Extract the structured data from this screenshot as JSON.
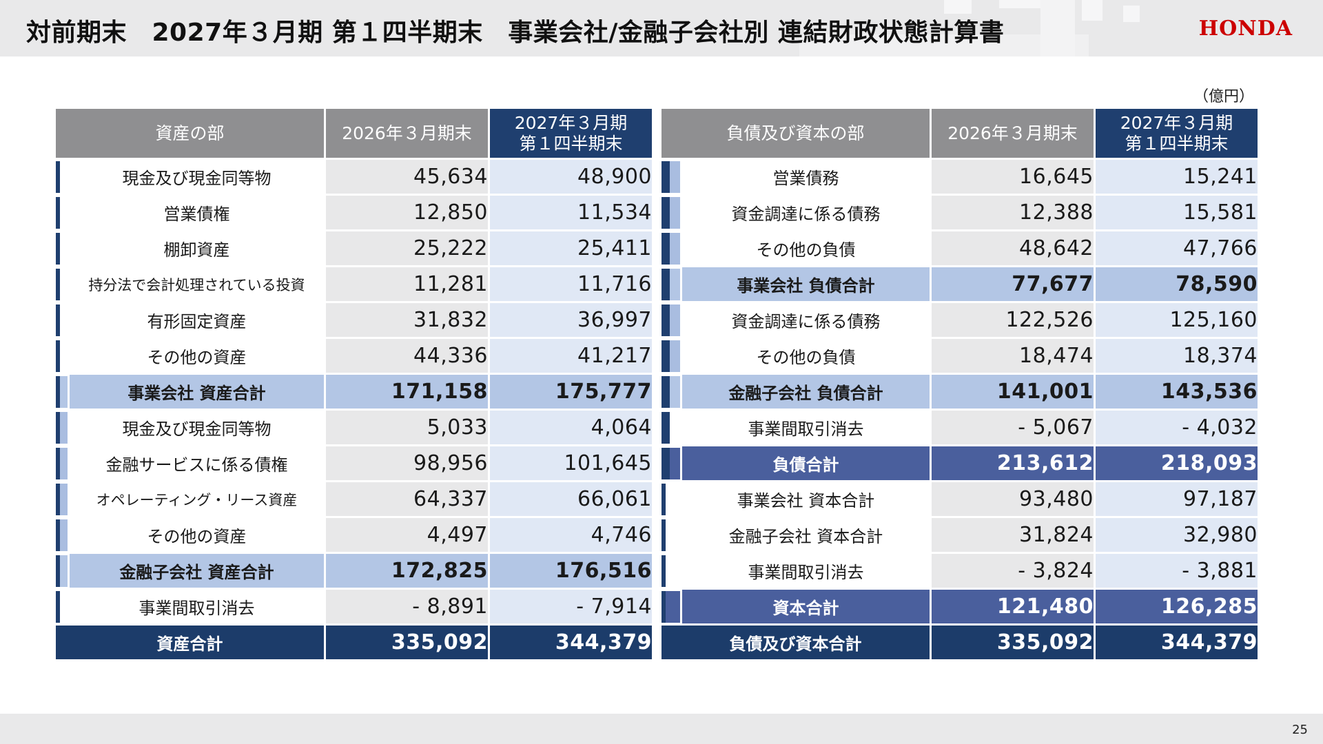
{
  "header": {
    "title": "対前期末　2027年３月期 第１四半期末　事業会社/金融子会社別 連結財政状態計算書",
    "logo": "HONDA"
  },
  "unit": "（億円）",
  "colors": {
    "navy": "#1f3f6f",
    "light_blue": "#b3c6e5",
    "mid_blue": "#4a5f9d",
    "gray_header": "#8f8f91",
    "brand_red": "#cc0000"
  },
  "assets": {
    "headers": {
      "section": "資産の部",
      "prev": "2026年３月期末",
      "cur_line1": "2027年３月期",
      "cur_line2": "第１四半期末"
    },
    "rows": [
      {
        "label": "現金及び現金同等物",
        "prev": "45,634",
        "cur": "48,900"
      },
      {
        "label": "営業債権",
        "prev": "12,850",
        "cur": "11,534"
      },
      {
        "label": "棚卸資産",
        "prev": "25,222",
        "cur": "25,411"
      },
      {
        "label": "持分法で会計処理されている投資",
        "prev": "11,281",
        "cur": "11,716"
      },
      {
        "label": "有形固定資産",
        "prev": "31,832",
        "cur": "36,997"
      },
      {
        "label": "その他の資産",
        "prev": "44,336",
        "cur": "41,217"
      },
      {
        "label": "事業会社 資産合計",
        "prev": "171,158",
        "cur": "175,777"
      },
      {
        "label": "現金及び現金同等物",
        "prev": "5,033",
        "cur": "4,064"
      },
      {
        "label": "金融サービスに係る債権",
        "prev": "98,956",
        "cur": "101,645"
      },
      {
        "label": "オペレーティング・リース資産",
        "prev": "64,337",
        "cur": "66,061"
      },
      {
        "label": "その他の資産",
        "prev": "4,497",
        "cur": "4,746"
      },
      {
        "label": "金融子会社 資産合計",
        "prev": "172,825",
        "cur": "176,516"
      },
      {
        "label": "事業間取引消去",
        "prev": "- 8,891",
        "cur": "- 7,914"
      },
      {
        "label": "資産合計",
        "prev": "335,092",
        "cur": "344,379"
      }
    ]
  },
  "liabilities": {
    "headers": {
      "section": "負債及び資本の部",
      "prev": "2026年３月期末",
      "cur_line1": "2027年３月期",
      "cur_line2": "第１四半期末"
    },
    "rows": [
      {
        "label": "営業債務",
        "prev": "16,645",
        "cur": "15,241"
      },
      {
        "label": "資金調達に係る債務",
        "prev": "12,388",
        "cur": "15,581"
      },
      {
        "label": "その他の負債",
        "prev": "48,642",
        "cur": "47,766"
      },
      {
        "label": "事業会社 負債合計",
        "prev": "77,677",
        "cur": "78,590"
      },
      {
        "label": "資金調達に係る債務",
        "prev": "122,526",
        "cur": "125,160"
      },
      {
        "label": "その他の負債",
        "prev": "18,474",
        "cur": "18,374"
      },
      {
        "label": "金融子会社 負債合計",
        "prev": "141,001",
        "cur": "143,536"
      },
      {
        "label": "事業間取引消去",
        "prev": "- 5,067",
        "cur": "- 4,032"
      },
      {
        "label": "負債合計",
        "prev": "213,612",
        "cur": "218,093"
      },
      {
        "label": "事業会社 資本合計",
        "prev": "93,480",
        "cur": "97,187"
      },
      {
        "label": "金融子会社 資本合計",
        "prev": "31,824",
        "cur": "32,980"
      },
      {
        "label": "事業間取引消去",
        "prev": "- 3,824",
        "cur": "- 3,881"
      },
      {
        "label": "資本合計",
        "prev": "121,480",
        "cur": "126,285"
      },
      {
        "label": "負債及び資本合計",
        "prev": "335,092",
        "cur": "344,379"
      }
    ]
  },
  "footer": {
    "page_number": "25"
  }
}
